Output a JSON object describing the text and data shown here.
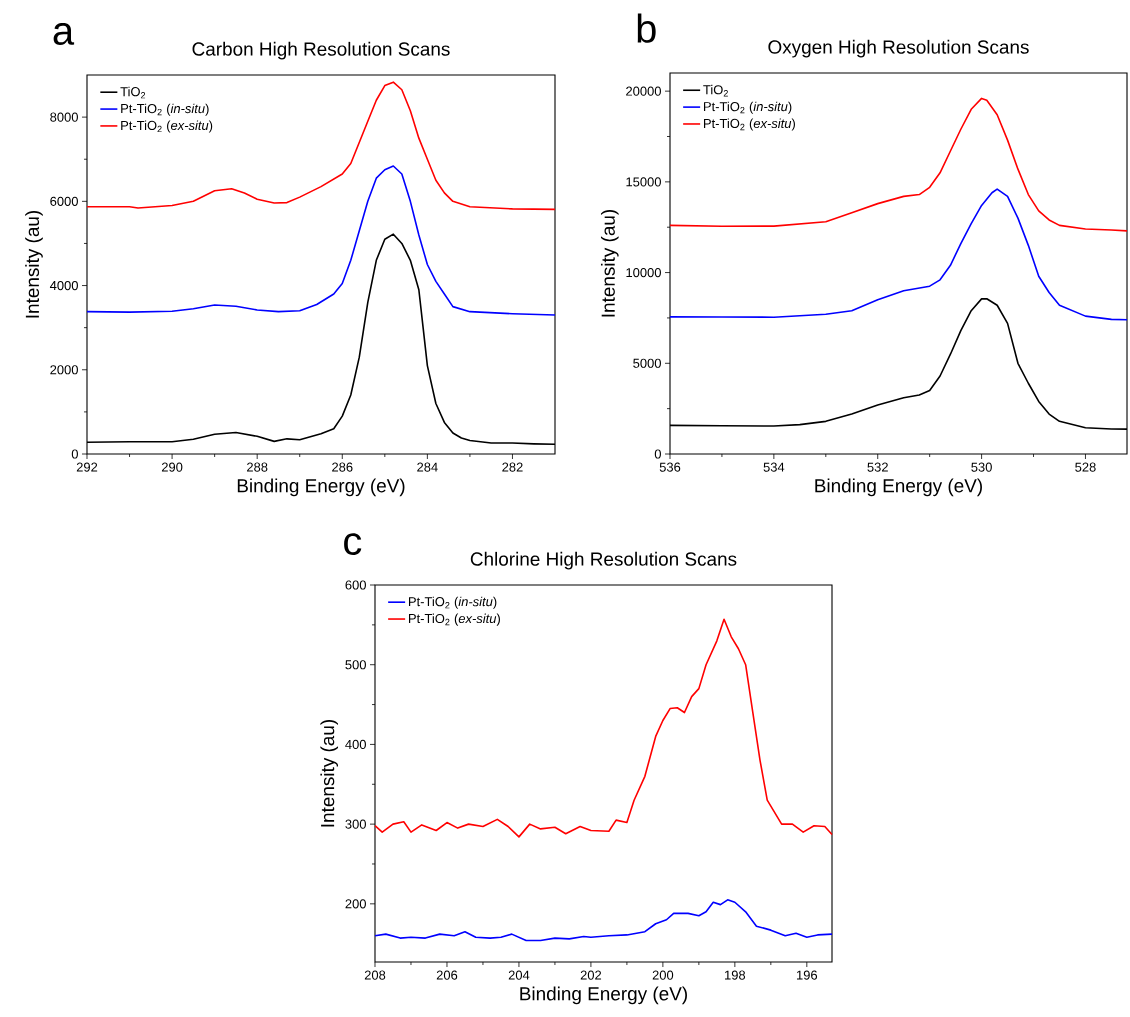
{
  "chart_data": [
    {
      "type": "line",
      "title": "Carbon High Resolution Scans",
      "xlabel": "Binding Energy (eV)",
      "ylabel": "Intensity (au)",
      "annotations": [
        "a"
      ],
      "xlim": [
        292,
        281
      ],
      "ylim": [
        0,
        9000
      ],
      "xticks": [
        292,
        290,
        288,
        286,
        284,
        282
      ],
      "yticks": [
        0,
        2000,
        4000,
        6000,
        8000
      ],
      "legend": "top left",
      "series": [
        {
          "name": "TiO$_{2}$",
          "color": "#000000",
          "x": [
            292,
            291,
            290,
            289.5,
            289,
            288.5,
            288,
            287.6,
            287.3,
            287,
            286.5,
            286.2,
            286,
            285.8,
            285.6,
            285.4,
            285.2,
            285,
            284.8,
            284.6,
            284.4,
            284.2,
            284.1,
            284,
            283.8,
            283.6,
            283.4,
            283.2,
            283,
            282.5,
            282,
            281.5,
            281
          ],
          "values": [
            280,
            290,
            290,
            350,
            470,
            510,
            420,
            300,
            360,
            340,
            480,
            600,
            900,
            1400,
            2300,
            3600,
            4600,
            5100,
            5220,
            5000,
            4600,
            3900,
            3000,
            2100,
            1200,
            750,
            500,
            380,
            320,
            260,
            260,
            240,
            230
          ]
        },
        {
          "name": "Pt-TiO$_{2}$ (*in-situ*)",
          "color": "#0000ff",
          "x": [
            292,
            291,
            290,
            289.5,
            289,
            288.5,
            288,
            287.5,
            287,
            286.6,
            286.2,
            286,
            285.8,
            285.6,
            285.4,
            285.2,
            285,
            284.8,
            284.6,
            284.4,
            284.2,
            284,
            283.8,
            283.6,
            283.4,
            283,
            282,
            281
          ],
          "values": [
            3380,
            3370,
            3390,
            3450,
            3540,
            3510,
            3420,
            3380,
            3400,
            3550,
            3800,
            4050,
            4600,
            5300,
            6000,
            6550,
            6750,
            6840,
            6650,
            6000,
            5200,
            4500,
            4100,
            3800,
            3500,
            3380,
            3330,
            3300
          ]
        },
        {
          "name": "Pt-TiO$_{2}$ (*ex-situ*)",
          "color": "#ff0000",
          "x": [
            292,
            291,
            290.8,
            290,
            289.5,
            289,
            288.6,
            288.3,
            288,
            287.6,
            287.3,
            287,
            286.5,
            286,
            285.8,
            285.6,
            285.4,
            285.2,
            285,
            284.8,
            284.6,
            284.4,
            284.2,
            284,
            283.8,
            283.6,
            283.4,
            283,
            282,
            281
          ],
          "values": [
            5870,
            5870,
            5840,
            5900,
            6000,
            6250,
            6300,
            6200,
            6050,
            5960,
            5970,
            6100,
            6350,
            6650,
            6900,
            7400,
            7900,
            8400,
            8750,
            8830,
            8650,
            8150,
            7500,
            7000,
            6500,
            6200,
            6000,
            5870,
            5820,
            5810
          ]
        }
      ]
    },
    {
      "type": "line",
      "title": "Oxygen High Resolution Scans",
      "xlabel": "Binding Energy (eV)",
      "ylabel": "Intensity (au)",
      "annotations": [
        "b"
      ],
      "xlim": [
        536,
        527.2
      ],
      "ylim": [
        0,
        21000
      ],
      "xticks": [
        536,
        534,
        532,
        530,
        528
      ],
      "yticks": [
        0,
        5000,
        10000,
        15000,
        20000
      ],
      "legend": "top left",
      "series": [
        {
          "name": "TiO$_{2}$",
          "color": "#000000",
          "x": [
            536,
            535,
            534,
            533.5,
            533,
            532.5,
            532,
            531.5,
            531.2,
            531,
            530.8,
            530.6,
            530.4,
            530.2,
            530,
            529.9,
            529.7,
            529.5,
            529.3,
            529.1,
            528.9,
            528.7,
            528.5,
            528,
            527.5,
            527.2
          ],
          "values": [
            1580,
            1560,
            1540,
            1620,
            1800,
            2200,
            2700,
            3100,
            3250,
            3500,
            4300,
            5500,
            6800,
            7900,
            8550,
            8560,
            8200,
            7200,
            5000,
            3900,
            2900,
            2200,
            1800,
            1450,
            1380,
            1370
          ]
        },
        {
          "name": "Pt-TiO$_{2}$ (*in-situ*)",
          "color": "#0000ff",
          "x": [
            536,
            535,
            534,
            533,
            532.5,
            532,
            531.5,
            531,
            530.8,
            530.6,
            530.4,
            530.2,
            530,
            529.8,
            529.7,
            529.5,
            529.3,
            529.1,
            528.9,
            528.7,
            528.5,
            528,
            527.5,
            527.2
          ],
          "values": [
            7560,
            7550,
            7540,
            7700,
            7900,
            8500,
            9000,
            9250,
            9600,
            10400,
            11600,
            12700,
            13700,
            14400,
            14600,
            14200,
            13000,
            11500,
            9800,
            8900,
            8200,
            7600,
            7420,
            7400
          ]
        },
        {
          "name": "Pt-TiO$_{2}$ (*ex-situ*)",
          "color": "#ff0000",
          "x": [
            536,
            535,
            534,
            533,
            532.5,
            532,
            531.5,
            531.2,
            531,
            530.8,
            530.6,
            530.4,
            530.2,
            530,
            529.9,
            529.7,
            529.5,
            529.3,
            529.1,
            528.9,
            528.7,
            528.5,
            528,
            527.5,
            527.2
          ],
          "values": [
            12600,
            12550,
            12560,
            12800,
            13300,
            13800,
            14200,
            14300,
            14700,
            15500,
            16700,
            17900,
            19000,
            19600,
            19500,
            18700,
            17300,
            15700,
            14300,
            13400,
            12900,
            12600,
            12400,
            12350,
            12300
          ]
        }
      ]
    },
    {
      "type": "line",
      "title": "Chlorine High Resolution Scans",
      "xlabel": "Binding Energy (eV)",
      "ylabel": "Intensity (au)",
      "annotations": [
        "c"
      ],
      "xlim": [
        208,
        195.3
      ],
      "ylim": [
        127,
        600
      ],
      "xticks": [
        208,
        206,
        204,
        202,
        200,
        198,
        196
      ],
      "yticks": [
        200,
        300,
        400,
        500,
        600
      ],
      "legend": "top left",
      "series": [
        {
          "name": "Pt-TiO$_{2}$ (*in-situ*)",
          "color": "#0000ff",
          "x": [
            208,
            207.7,
            207.3,
            207,
            206.6,
            206.2,
            205.8,
            205.5,
            205.2,
            204.8,
            204.5,
            204.2,
            203.8,
            203.4,
            203,
            202.6,
            202.2,
            202,
            201.5,
            201,
            200.5,
            200.2,
            199.9,
            199.7,
            199.3,
            199,
            198.8,
            198.6,
            198.4,
            198.2,
            198,
            197.7,
            197.4,
            197,
            196.6,
            196.3,
            196,
            195.7,
            195.3
          ],
          "values": [
            160,
            162,
            157,
            158,
            157,
            162,
            160,
            165,
            158,
            157,
            158,
            162,
            154,
            154,
            157,
            156,
            159,
            158,
            160,
            161,
            165,
            175,
            180,
            188,
            188,
            185,
            190,
            202,
            199,
            205,
            202,
            190,
            172,
            167,
            160,
            163,
            158,
            161,
            162
          ]
        },
        {
          "name": "Pt-TiO$_{2}$ (*ex-situ*)",
          "color": "#ff0000",
          "x": [
            208,
            207.8,
            207.5,
            207.2,
            207,
            206.7,
            206.3,
            206,
            205.7,
            205.4,
            205,
            204.6,
            204.3,
            204,
            203.7,
            203.4,
            203,
            202.7,
            202.3,
            202,
            201.5,
            201.3,
            201,
            200.8,
            200.5,
            200.2,
            200,
            199.8,
            199.6,
            199.4,
            199.2,
            199,
            198.8,
            198.5,
            198.3,
            198.1,
            197.9,
            197.7,
            197.5,
            197.3,
            197.1,
            196.7,
            196.4,
            196.1,
            195.8,
            195.5,
            195.3
          ],
          "values": [
            298,
            290,
            300,
            303,
            290,
            299,
            292,
            302,
            295,
            300,
            297,
            306,
            297,
            284,
            300,
            294,
            296,
            288,
            297,
            292,
            291,
            305,
            302,
            330,
            360,
            410,
            430,
            445,
            446,
            440,
            460,
            470,
            500,
            530,
            557,
            535,
            520,
            500,
            440,
            380,
            330,
            300,
            300,
            290,
            298,
            297,
            287
          ]
        }
      ]
    }
  ]
}
